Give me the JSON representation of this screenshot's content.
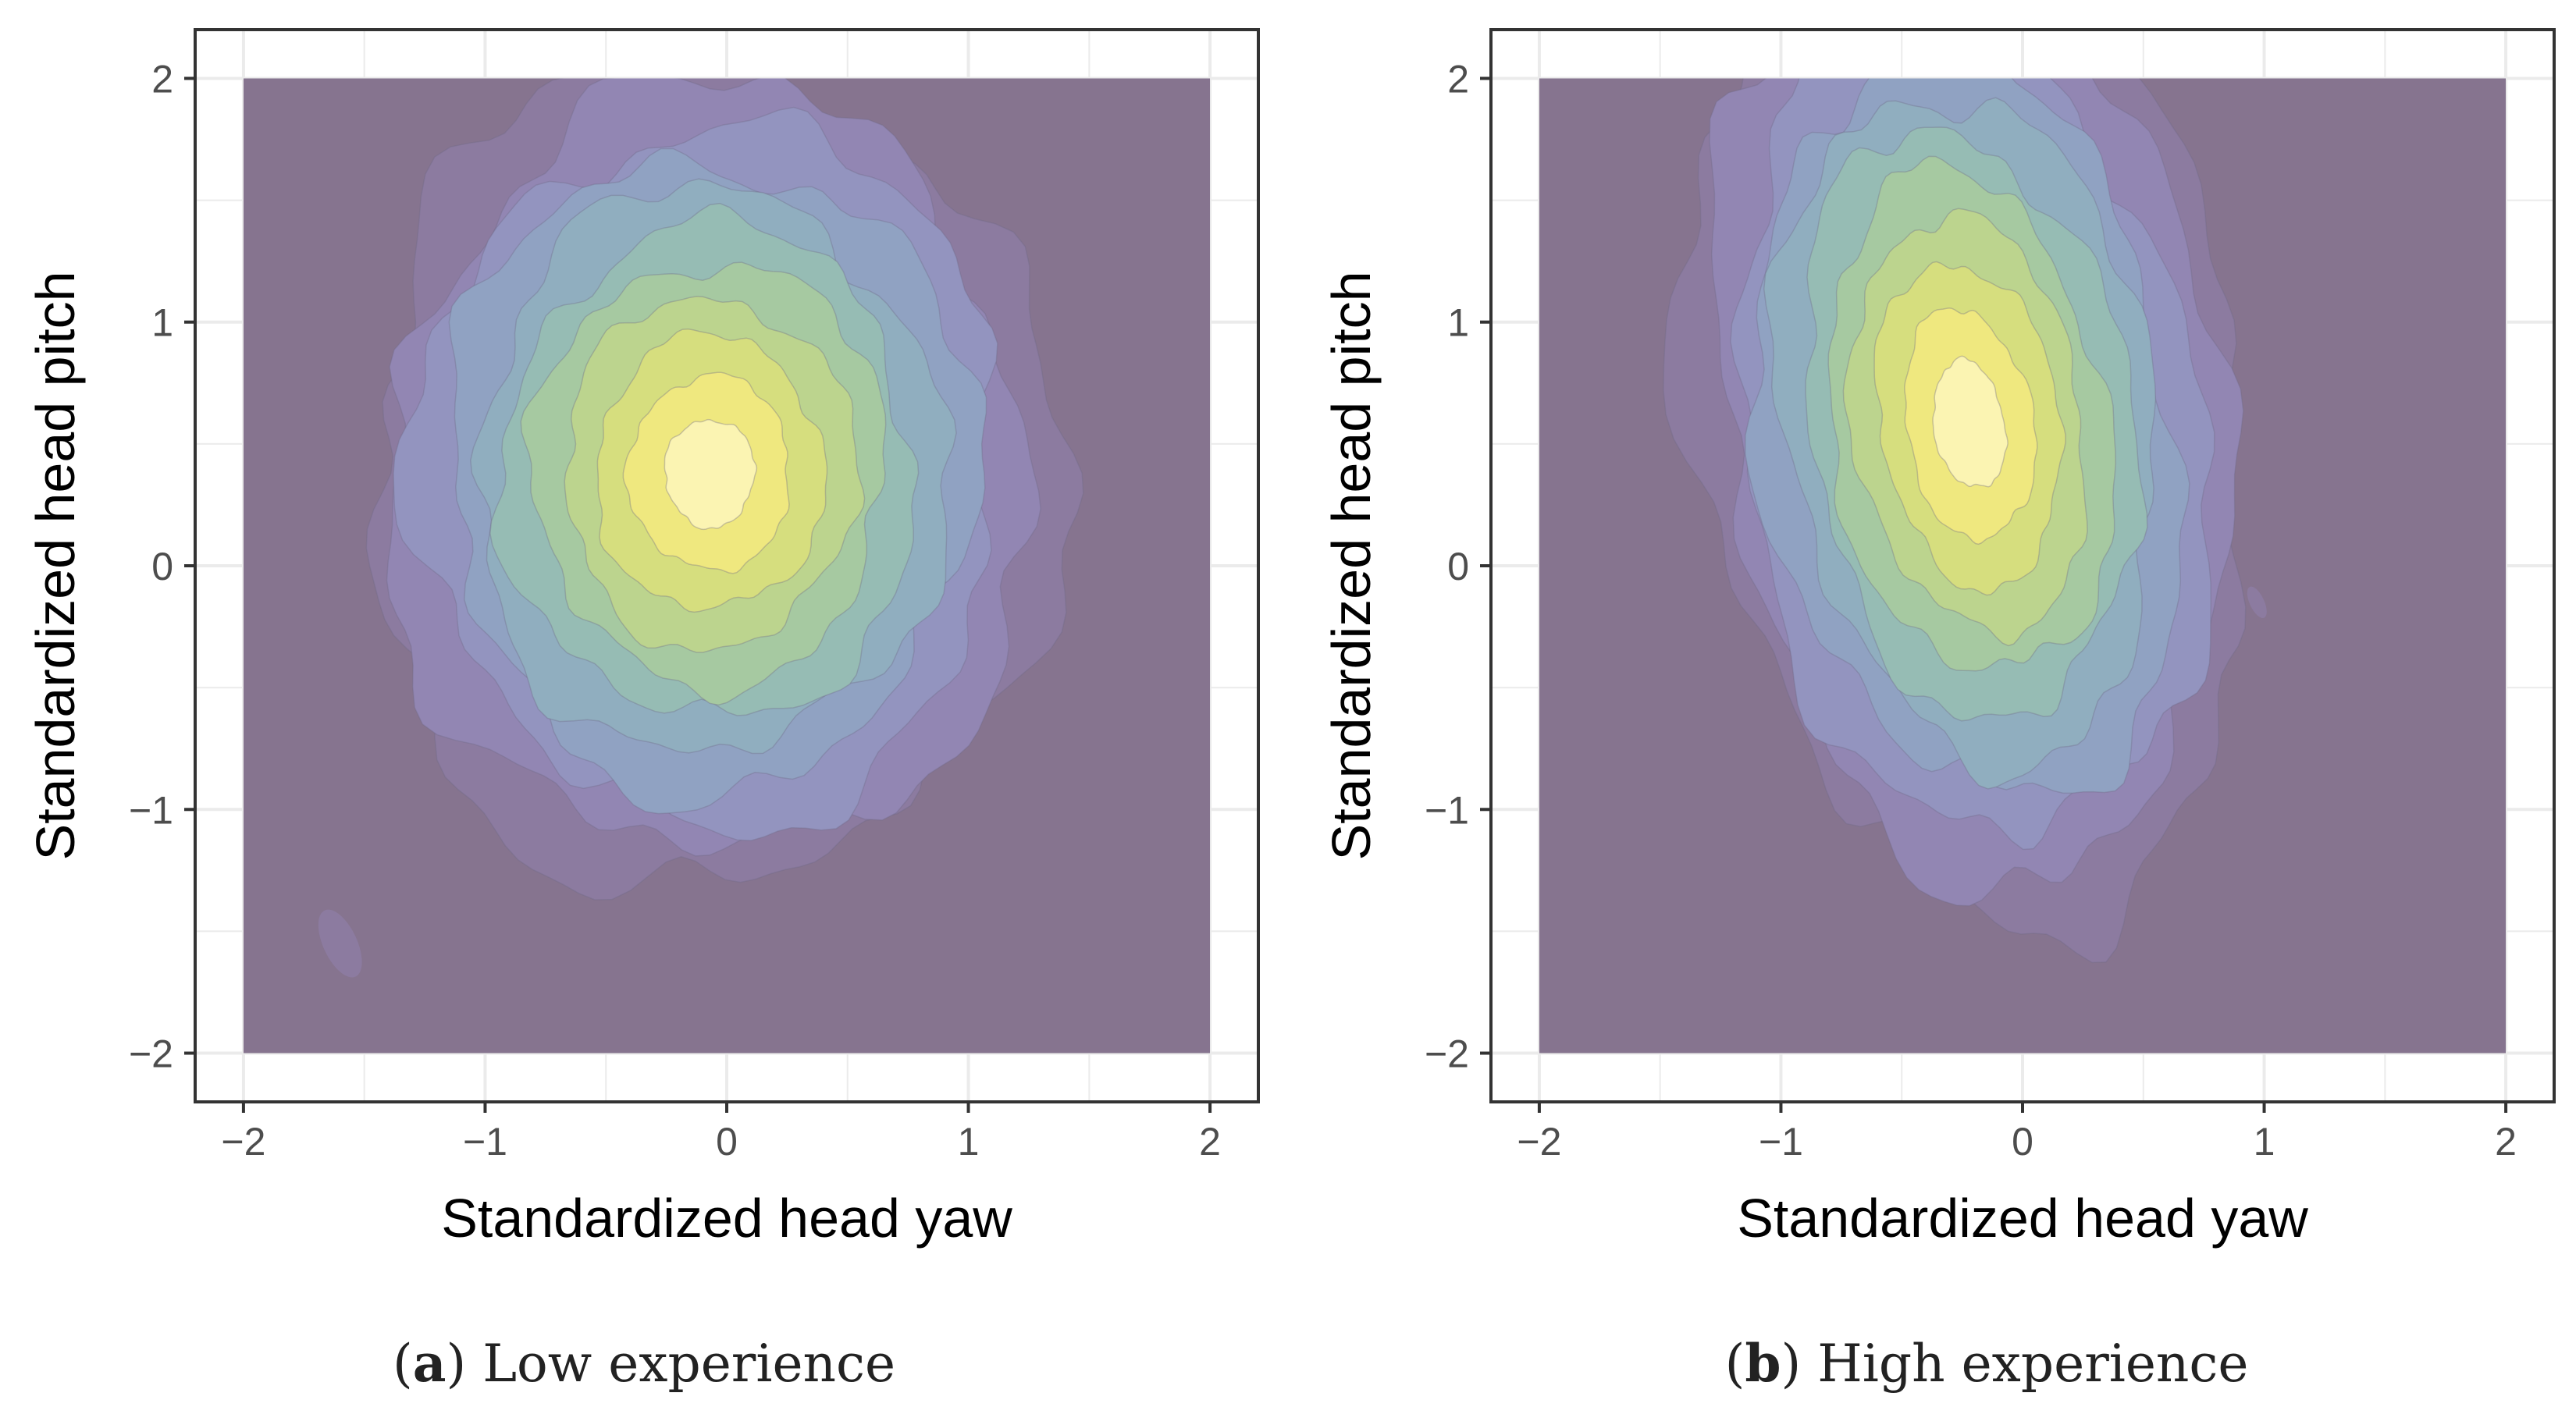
{
  "chart_data": [
    {
      "type": "density-contour",
      "caption": {
        "label": "a",
        "text": "Low experience"
      },
      "xlabel": "Standardized head yaw",
      "ylabel": "Standardized head pitch",
      "xlim": [
        -2.2,
        2.2
      ],
      "ylim": [
        -2.2,
        2.2
      ],
      "fill_range": {
        "x": [
          -2,
          2
        ],
        "y": [
          -2,
          2
        ]
      },
      "x_ticks": [
        -2,
        -1,
        0,
        1,
        2
      ],
      "y_ticks": [
        -2,
        -1,
        0,
        1,
        2
      ],
      "x_tick_labels": [
        "−2",
        "−1",
        "0",
        "1",
        "2"
      ],
      "y_tick_labels": [
        "−2",
        "−1",
        "0",
        "1",
        "2"
      ],
      "grid": true,
      "density_peak": {
        "x": -0.07,
        "y": 0.38
      },
      "density_spread": {
        "sx": 0.52,
        "sy": 0.62,
        "rho": 0.0
      },
      "contour_levels": 11,
      "islands": [
        {
          "x": -1.6,
          "y": -1.55,
          "rx": 0.07,
          "ry": 0.15
        }
      ]
    },
    {
      "type": "density-contour",
      "caption": {
        "label": "b",
        "text": "High experience"
      },
      "xlabel": "Standardized head yaw",
      "ylabel": "Standardized head pitch",
      "xlim": [
        -2.2,
        2.2
      ],
      "ylim": [
        -2.2,
        2.2
      ],
      "fill_range": {
        "x": [
          -2,
          2
        ],
        "y": [
          -2,
          2
        ]
      },
      "x_ticks": [
        -2,
        -1,
        0,
        1,
        2
      ],
      "y_ticks": [
        -2,
        -1,
        0,
        1,
        2
      ],
      "x_tick_labels": [
        "−2",
        "−1",
        "0",
        "1",
        "2"
      ],
      "y_tick_labels": [
        "−2",
        "−1",
        "0",
        "1",
        "2"
      ],
      "grid": true,
      "density_peak": {
        "x": -0.22,
        "y": 0.58
      },
      "density_spread": {
        "sx": 0.42,
        "sy": 0.72,
        "rho": -0.2
      },
      "contour_levels": 11,
      "islands": [
        {
          "x": 0.97,
          "y": -0.15,
          "rx": 0.03,
          "ry": 0.07
        }
      ]
    }
  ],
  "colors": {
    "background_fill": "#86748f",
    "palette": [
      "#86748f",
      "#8c7ba0",
      "#9286b3",
      "#9394bf",
      "#90a2c2",
      "#90aebf",
      "#96bcb4",
      "#a6c9a1",
      "#bcd48e",
      "#d6de7e",
      "#efe87f",
      "#fbf4b2"
    ],
    "panel_border": "#333333",
    "grid": "#ebebeb",
    "tick_text": "#4d4d4d"
  }
}
